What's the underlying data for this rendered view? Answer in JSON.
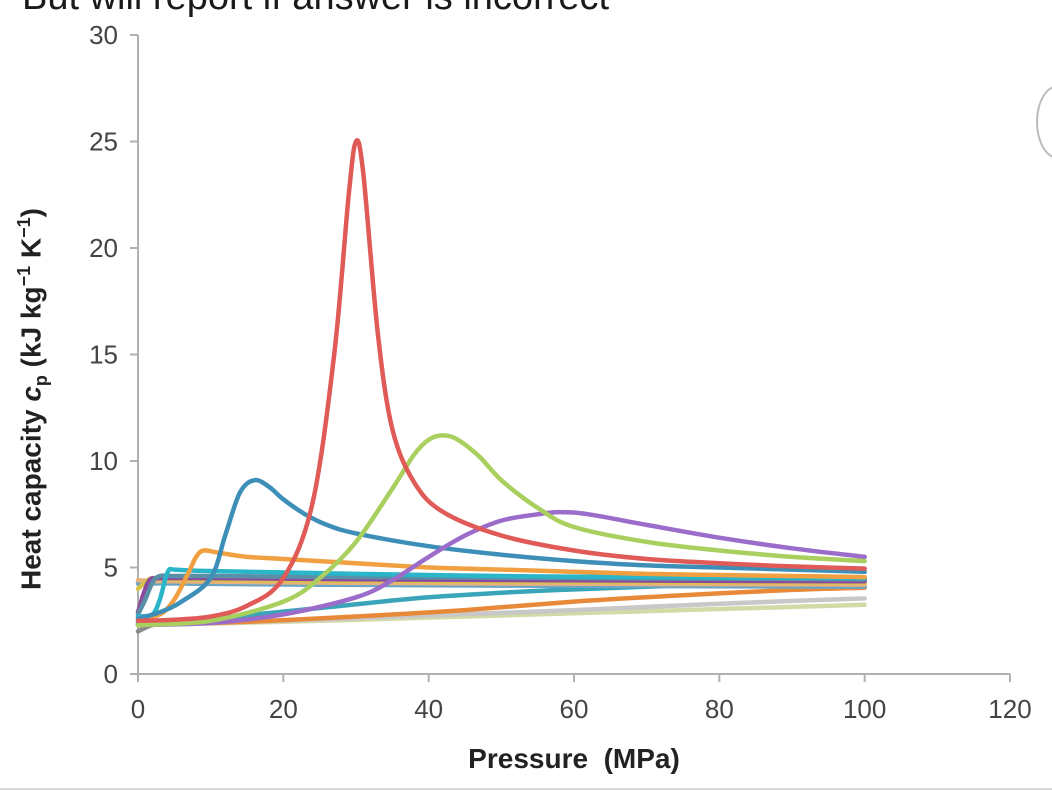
{
  "top_text": "But will report if answer is incorrect",
  "chart_data": {
    "type": "line",
    "title": "",
    "xlabel": "Pressure  (MPa)",
    "ylabel": {
      "prefix": "Heat capacity ",
      "symbol": "c",
      "subscript": "p",
      "unit_open": " (kJ kg",
      "sup1": "−1",
      "unit_mid": " K",
      "sup2": "−1",
      "unit_close": ")"
    },
    "xlim": [
      0,
      120
    ],
    "ylim": [
      0,
      30
    ],
    "xticks": [
      0,
      20,
      40,
      60,
      80,
      100,
      120
    ],
    "yticks": [
      0,
      5,
      10,
      15,
      20,
      25,
      30
    ],
    "grid": false,
    "series": [
      {
        "color": "#e05a57",
        "x": [
          0,
          5,
          10,
          15,
          20,
          24,
          27,
          29,
          30,
          31,
          33,
          35,
          38,
          42,
          50,
          60,
          70,
          80,
          90,
          100
        ],
        "y": [
          2.5,
          2.55,
          2.7,
          3.2,
          4.5,
          8.0,
          15.0,
          22.5,
          25.0,
          23.5,
          16.0,
          11.5,
          9.0,
          7.6,
          6.5,
          5.8,
          5.4,
          5.2,
          5.05,
          4.95
        ]
      },
      {
        "color": "#a9cf5e",
        "x": [
          0,
          10,
          20,
          25,
          30,
          35,
          38,
          40,
          42,
          44,
          47,
          50,
          55,
          60,
          70,
          80,
          90,
          100
        ],
        "y": [
          2.3,
          2.5,
          3.4,
          4.5,
          6.2,
          8.7,
          10.3,
          11.0,
          11.2,
          11.0,
          10.2,
          9.1,
          7.8,
          6.9,
          6.2,
          5.8,
          5.5,
          5.3
        ]
      },
      {
        "color": "#9b6cc9",
        "x": [
          0,
          10,
          20,
          30,
          35,
          40,
          45,
          50,
          55,
          58,
          62,
          70,
          80,
          90,
          100
        ],
        "y": [
          2.3,
          2.4,
          2.8,
          3.6,
          4.4,
          5.5,
          6.5,
          7.2,
          7.5,
          7.6,
          7.5,
          7.0,
          6.4,
          5.9,
          5.5
        ]
      },
      {
        "color": "#3d8fb8",
        "x": [
          0,
          3,
          6,
          10,
          12,
          14,
          16,
          18,
          20,
          23,
          26,
          30,
          40,
          50,
          60,
          70,
          80,
          90,
          100
        ],
        "y": [
          2.6,
          2.9,
          3.4,
          4.5,
          6.5,
          8.5,
          9.1,
          8.8,
          8.2,
          7.5,
          7.0,
          6.6,
          6.0,
          5.6,
          5.3,
          5.1,
          5.0,
          4.9,
          4.8
        ]
      },
      {
        "color": "#f0a040",
        "x": [
          0,
          3,
          5,
          7,
          8,
          9,
          11,
          15,
          20,
          30,
          40,
          50,
          60,
          70,
          80,
          90,
          100
        ],
        "y": [
          2.6,
          2.8,
          3.5,
          4.8,
          5.5,
          5.8,
          5.7,
          5.5,
          5.4,
          5.2,
          5.0,
          4.9,
          4.8,
          4.7,
          4.65,
          4.6,
          4.55
        ]
      },
      {
        "color": "#2ab5c8",
        "x": [
          0,
          2,
          3,
          3.8,
          4.3,
          5,
          8,
          15,
          30,
          50,
          70,
          100
        ],
        "y": [
          2.7,
          2.8,
          3.5,
          4.5,
          4.9,
          4.9,
          4.85,
          4.8,
          4.7,
          4.6,
          4.55,
          4.5
        ]
      },
      {
        "color": "#5a8fa8",
        "x": [
          0,
          1,
          2,
          3,
          5,
          10,
          30,
          60,
          100
        ],
        "y": [
          2.8,
          3.5,
          4.3,
          4.6,
          4.6,
          4.6,
          4.55,
          4.5,
          4.45
        ]
      },
      {
        "color": "#8c4a9e",
        "x": [
          0,
          0.8,
          1.6,
          3,
          10,
          30,
          60,
          100
        ],
        "y": [
          2.9,
          3.8,
          4.4,
          4.5,
          4.5,
          4.45,
          4.4,
          4.35
        ]
      },
      {
        "color": "#d9c24a",
        "x": [
          0,
          1,
          2,
          5,
          20,
          50,
          100
        ],
        "y": [
          4.0,
          4.3,
          4.5,
          4.45,
          4.4,
          4.35,
          4.3
        ]
      },
      {
        "color": "#e8b27a",
        "x": [
          0,
          5,
          20,
          50,
          100
        ],
        "y": [
          4.4,
          4.35,
          4.3,
          4.25,
          4.2
        ]
      },
      {
        "color": "#6aa5c6",
        "x": [
          0,
          5,
          20,
          50,
          100
        ],
        "y": [
          4.25,
          4.25,
          4.2,
          4.15,
          4.1
        ]
      },
      {
        "color": "#3aa5b8",
        "x": [
          0,
          10,
          25,
          40,
          55,
          70,
          85,
          100
        ],
        "y": [
          2.4,
          2.6,
          3.1,
          3.6,
          3.9,
          4.1,
          4.3,
          4.4
        ]
      },
      {
        "color": "#e8893a",
        "x": [
          0,
          15,
          30,
          45,
          60,
          75,
          90,
          100
        ],
        "y": [
          2.3,
          2.45,
          2.7,
          3.0,
          3.4,
          3.7,
          3.95,
          4.05
        ]
      },
      {
        "color": "#c8c8c8",
        "x": [
          0,
          20,
          40,
          60,
          80,
          100
        ],
        "y": [
          2.3,
          2.5,
          2.75,
          3.0,
          3.3,
          3.55
        ]
      },
      {
        "color": "#d4d9a8",
        "x": [
          0,
          20,
          40,
          60,
          80,
          100
        ],
        "y": [
          2.3,
          2.45,
          2.65,
          2.85,
          3.05,
          3.25
        ]
      },
      {
        "color": "#8a8a8a",
        "x": [
          0,
          2,
          5
        ],
        "y": [
          2.0,
          2.3,
          2.4
        ]
      }
    ]
  }
}
